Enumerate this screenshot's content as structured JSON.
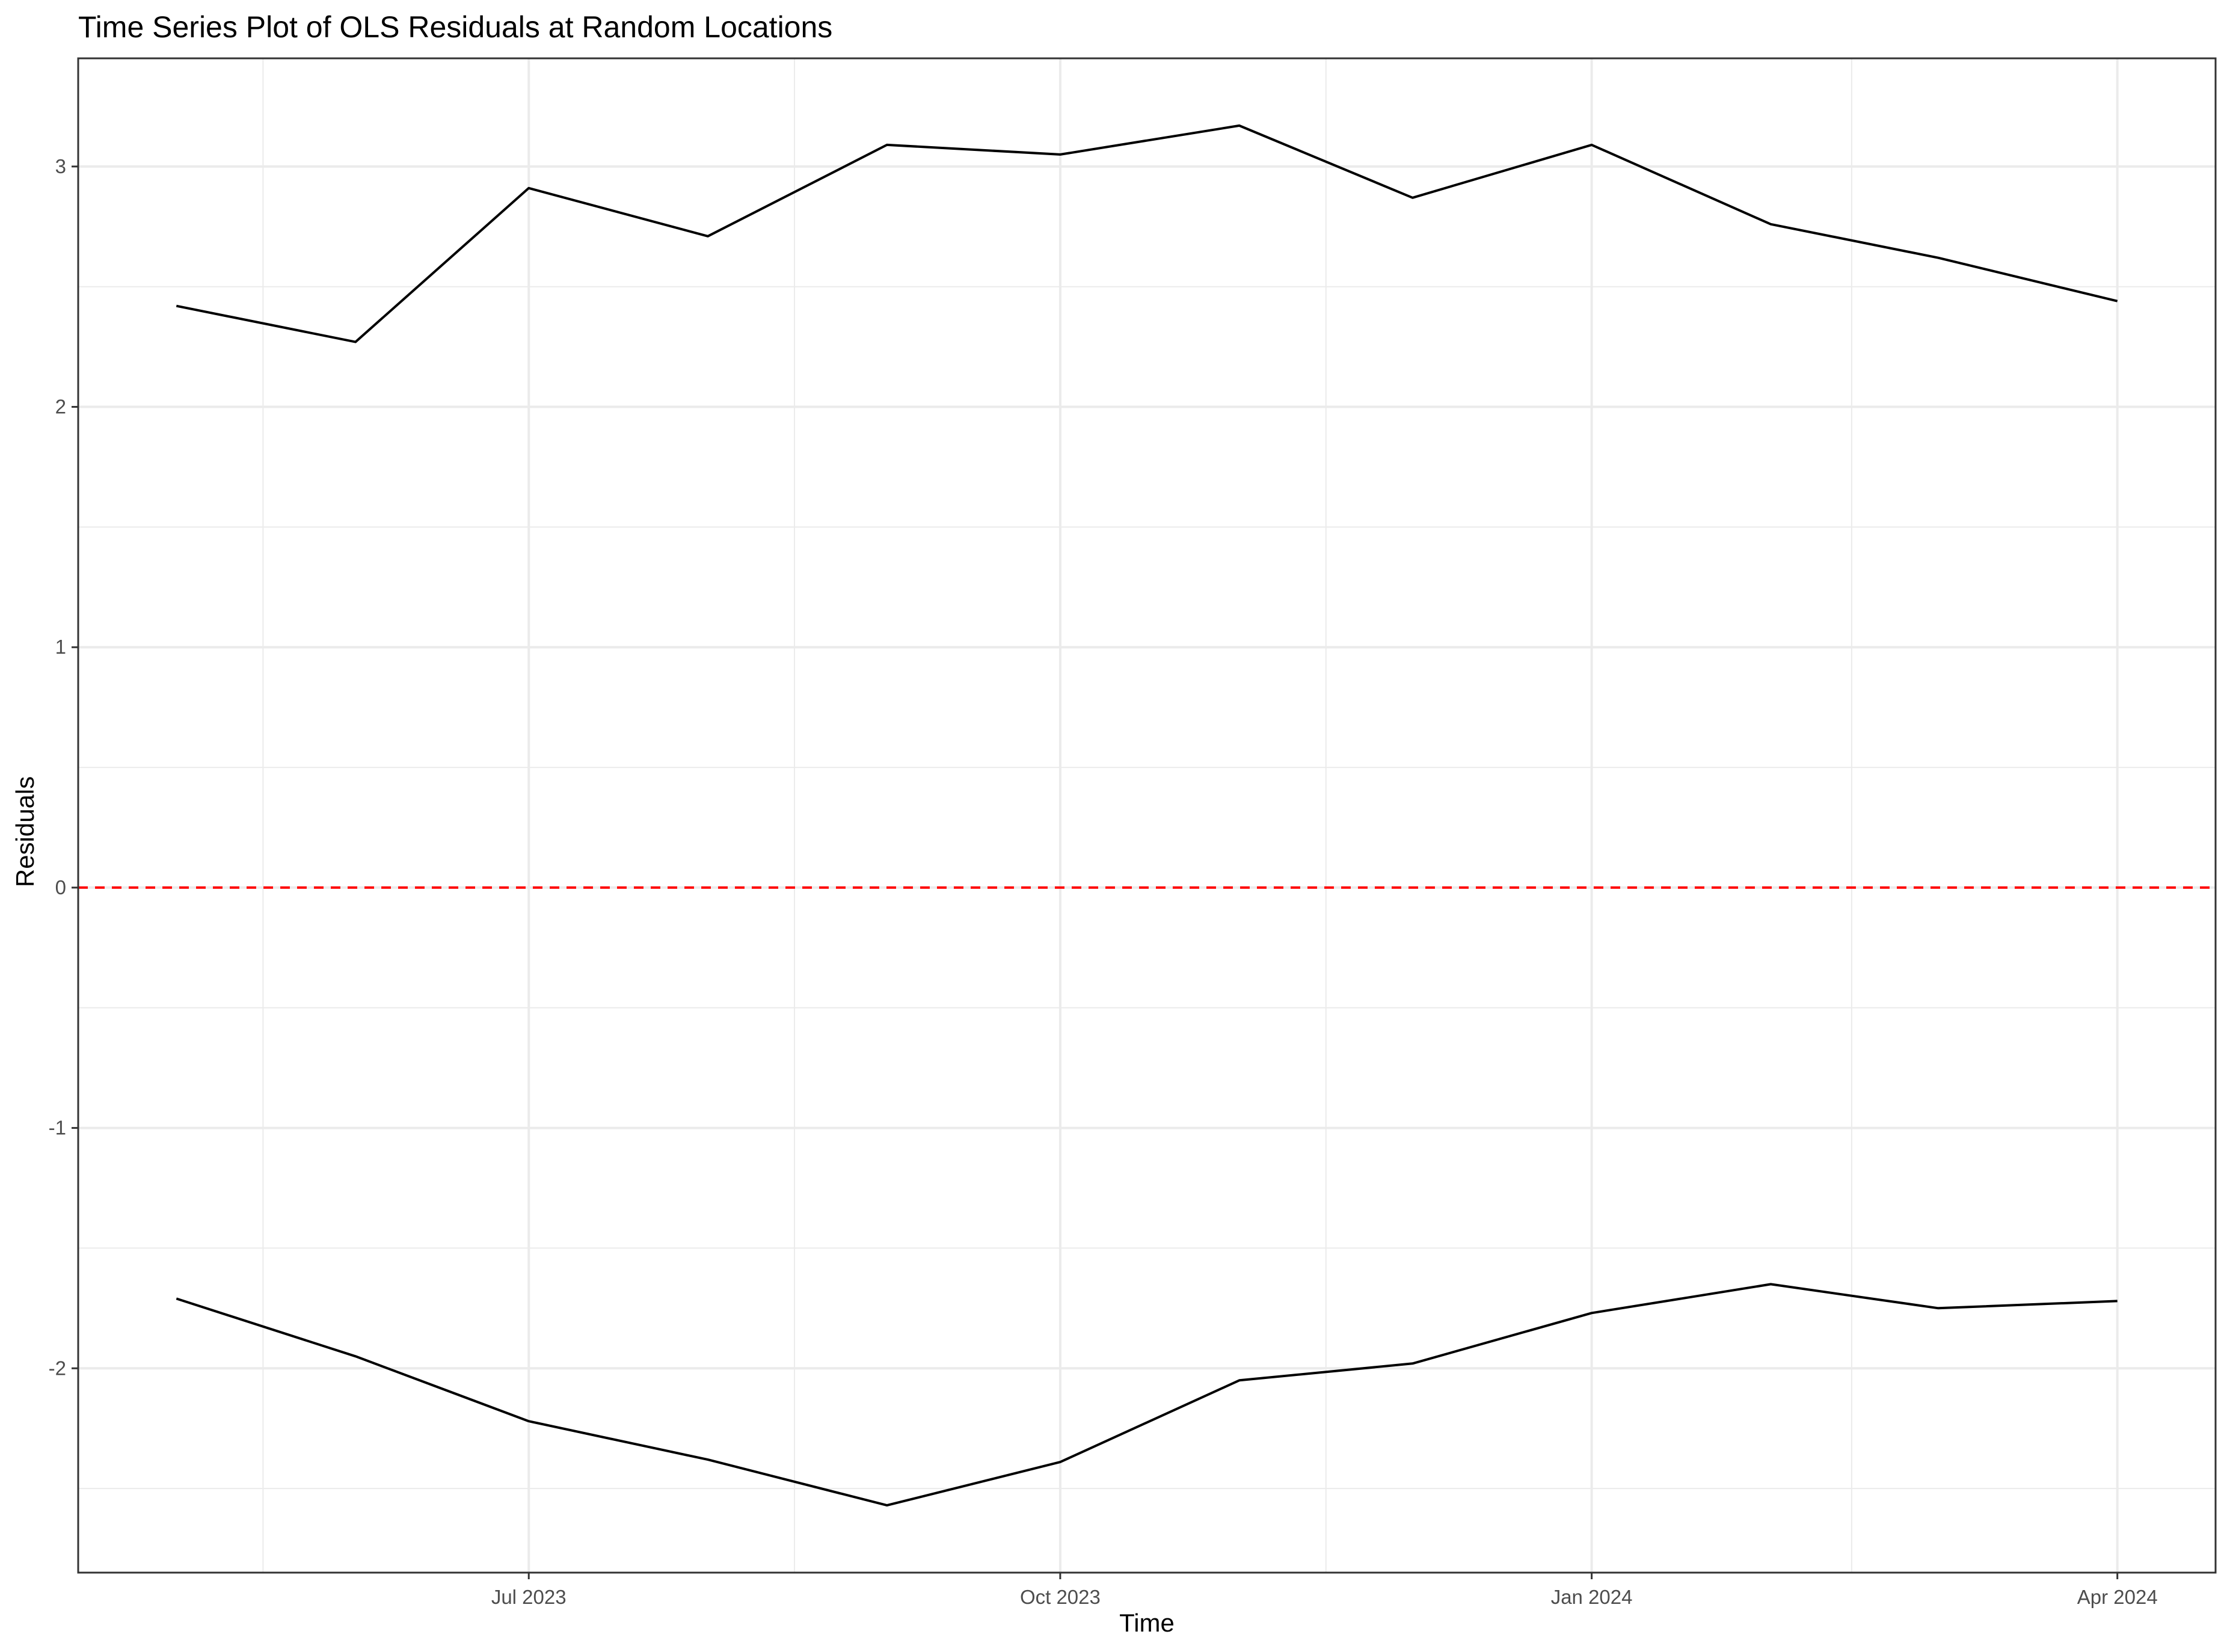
{
  "chart_data": {
    "type": "line",
    "title": "Time Series Plot of OLS Residuals at Random Locations",
    "xlabel": "Time",
    "ylabel": "Residuals",
    "x": [
      "2023-05-01",
      "2023-06-01",
      "2023-07-01",
      "2023-08-01",
      "2023-09-01",
      "2023-10-01",
      "2023-11-01",
      "2023-12-01",
      "2024-01-01",
      "2024-02-01",
      "2024-03-01",
      "2024-04-01"
    ],
    "series": [
      {
        "values": [
          2.42,
          2.27,
          2.91,
          2.71,
          3.09,
          3.05,
          3.17,
          2.87,
          3.09,
          2.76,
          2.62,
          2.44
        ],
        "color": "#000000"
      },
      {
        "values": [
          -1.71,
          -1.95,
          -2.22,
          -2.38,
          -2.57,
          -2.39,
          -2.05,
          -1.98,
          -1.77,
          -1.65,
          -1.75,
          -1.72
        ],
        "color": "#000000"
      }
    ],
    "xticks": [
      {
        "date": "2023-07-01",
        "label": "Jul 2023"
      },
      {
        "date": "2023-10-01",
        "label": "Oct 2023"
      },
      {
        "date": "2024-01-01",
        "label": "Jan 2024"
      },
      {
        "date": "2024-04-01",
        "label": "Apr 2024"
      }
    ],
    "xminor": [
      "2023-05-16",
      "2023-08-16",
      "2023-11-16",
      "2024-02-15"
    ],
    "yticks": [
      {
        "value": -2,
        "label": "-2"
      },
      {
        "value": -1,
        "label": "-1"
      },
      {
        "value": 0,
        "label": "0"
      },
      {
        "value": 1,
        "label": "1"
      },
      {
        "value": 2,
        "label": "2"
      },
      {
        "value": 3,
        "label": "3"
      }
    ],
    "yminor": [
      -2.5,
      -1.5,
      -0.5,
      0.5,
      1.5,
      2.5
    ],
    "xlim": [
      "2023-04-14",
      "2024-04-18"
    ],
    "ylim": [
      -2.85,
      3.45
    ],
    "hline": {
      "y": 0,
      "color": "#ff0000",
      "style": "dashed"
    },
    "grid": true,
    "colors": {
      "grid": "#ebebeb",
      "panel_border": "#333333",
      "tick_label": "#4d4d4d"
    }
  }
}
